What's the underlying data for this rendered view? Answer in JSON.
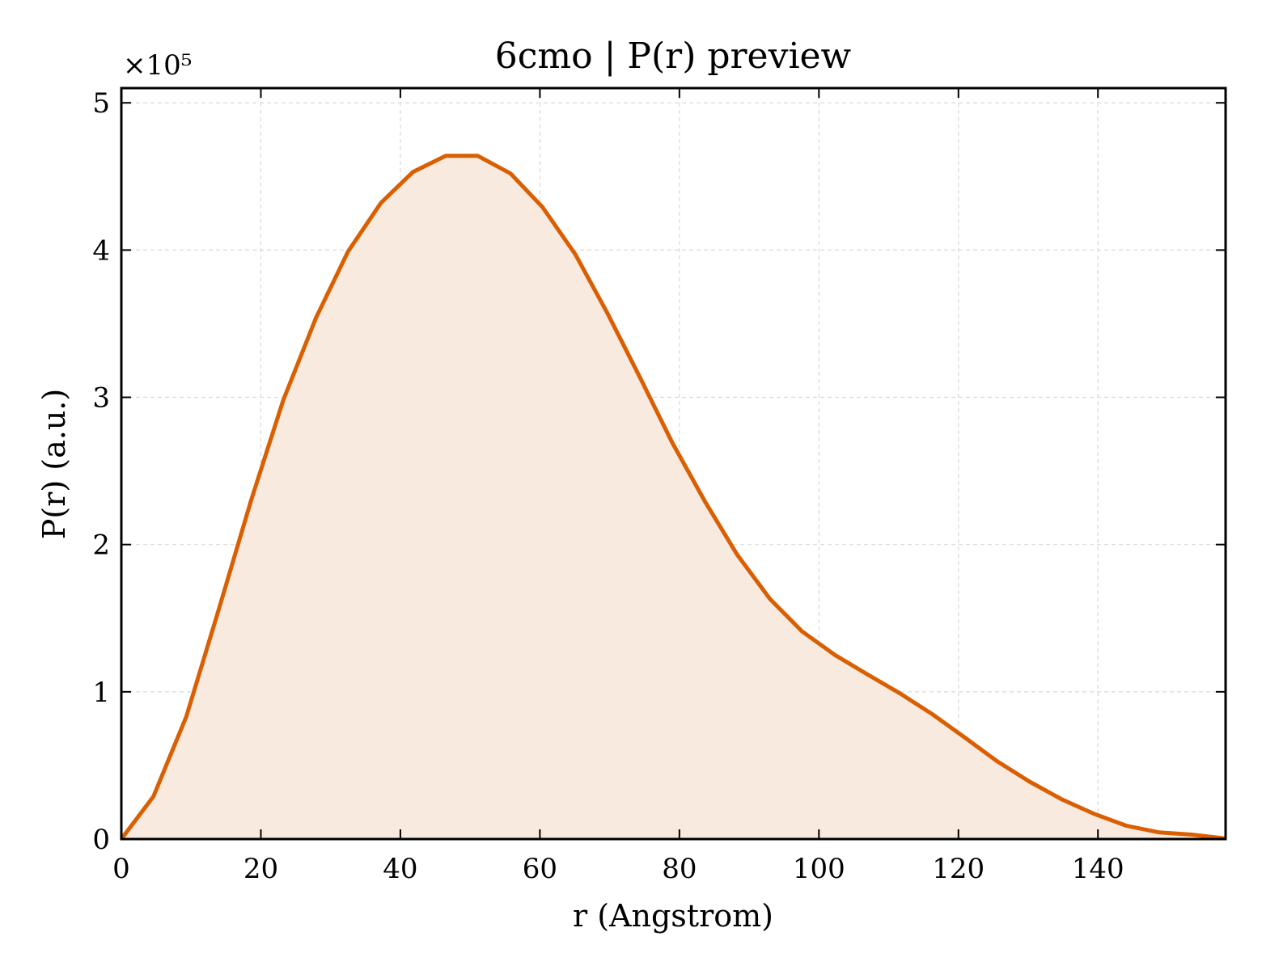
{
  "chart_data": {
    "type": "area",
    "title": "6cmo | P(r) preview",
    "xlabel": "r (Angstrom)",
    "ylabel": "P(r) (a.u.)",
    "y_offset_label": "×10⁵",
    "y_scale_factor": 100000,
    "xlim": [
      0,
      158.3
    ],
    "ylim": [
      0,
      510000
    ],
    "xticks": [
      0,
      20,
      40,
      60,
      80,
      100,
      120,
      140
    ],
    "yticks": [
      0,
      100000,
      200000,
      300000,
      400000,
      500000
    ],
    "ytick_labels": [
      "0",
      "1",
      "2",
      "3",
      "4",
      "5"
    ],
    "grid": true,
    "line_color": "#d95f02",
    "fill_color": "#f9eadf",
    "series": [
      {
        "x": [
          0,
          4.6,
          9.3,
          13.9,
          18.6,
          23.2,
          27.9,
          32.5,
          37.2,
          41.8,
          46.5,
          51.1,
          55.8,
          60.4,
          65.1,
          69.7,
          74.4,
          79.0,
          83.7,
          88.3,
          93.0,
          97.6,
          102.3,
          106.9,
          111.6,
          116.2,
          120.9,
          125.5,
          130.2,
          134.8,
          139.5,
          144.1,
          148.8,
          153.4,
          158.1
        ],
        "y": [
          0,
          29000,
          83000,
          155000,
          230000,
          298000,
          354000,
          399000,
          432000,
          453000,
          464000,
          464000,
          452000,
          429000,
          397000,
          357000,
          313000,
          269000,
          229000,
          193000,
          163000,
          141000,
          125000,
          112000,
          99000,
          85000,
          69000,
          53000,
          39000,
          27000,
          17000,
          9000,
          4500,
          3000,
          500
        ]
      }
    ]
  }
}
